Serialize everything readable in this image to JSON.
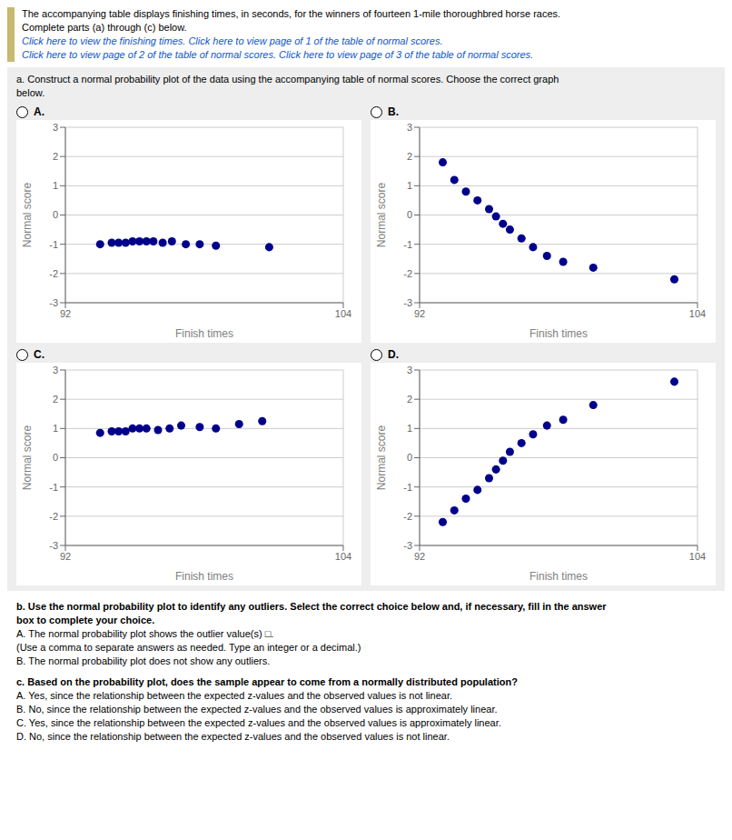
{
  "title": "The accompanying table displays finishing times, in seconds, for the winners of fourteen 1-mile thoroughbred horse races.",
  "subtitle": "Complete parts (a) through (c) below.",
  "annotations": [
    "Click here to view the finishing times. Click here to view page of 1 of the table of normal scores.",
    "Click here to view page of 2 of the table of normal scores. Click here to view page of 3 of the table of normal scores.",
    "a. Construct a normal probability plot of the data using the accompanying table of normal scores. Choose the correct graph",
    "below.",
    "b. Use the normal probability plot to identify any outliers. Select the correct choice below and, if necessary, fill in the answer",
    "box to complete your choice.",
    "A.  The normal probability plot shows the outlier value(s)  □.",
    "(Use a comma to separate answers as needed. Type an integer or a decimal.)",
    "B.  The normal probability plot does not show any outliers.",
    "c. Based on the probability plot, does the sample appear to come from a normally distributed population?",
    "A.  Yes, since the relationship between the expected z-values and the observed values is not linear.",
    "B.  No, since the relationship between the expected z-values and the observed values is approximately linear.",
    "C.  Yes, since the relationship between the expected z-values and the observed values is approximately linear.",
    "D.  No, since the relationship between the expected z-values and the observed values is not linear."
  ],
  "chart_data": [
    {
      "type": "scatter",
      "title": "A.",
      "x": [
        93.5,
        94.0,
        94.3,
        94.6,
        94.9,
        95.2,
        95.5,
        95.8,
        96.2,
        96.6,
        97.2,
        97.8,
        98.5,
        100.8
      ],
      "values": [
        -1.0,
        -0.95,
        -0.95,
        -0.95,
        -0.9,
        -0.9,
        -0.9,
        -0.9,
        -0.95,
        -0.9,
        -1.0,
        -1.0,
        -1.05,
        -1.1
      ],
      "color": "#00008B",
      "xlim": [
        92,
        104
      ],
      "ylim": [
        -3,
        3
      ],
      "xticks": [
        92,
        104
      ],
      "yticks": [
        -3,
        -2,
        -1,
        0,
        1,
        2,
        3
      ],
      "xlabel": "Finish times",
      "ylabel": "Normal score",
      "grid": true
    },
    {
      "type": "scatter",
      "title": "B.",
      "x": [
        93.0,
        93.5,
        94.0,
        94.5,
        95.0,
        95.3,
        95.6,
        95.9,
        96.4,
        96.9,
        97.5,
        98.2,
        99.5,
        103.0
      ],
      "values": [
        1.8,
        1.2,
        0.8,
        0.5,
        0.2,
        -0.05,
        -0.3,
        -0.5,
        -0.8,
        -1.1,
        -1.4,
        -1.6,
        -1.8,
        -2.2
      ],
      "color": "#00008B",
      "xlim": [
        92,
        104
      ],
      "ylim": [
        -3,
        3
      ],
      "xticks": [
        92,
        104
      ],
      "yticks": [
        -3,
        -2,
        -1,
        0,
        1,
        2,
        3
      ],
      "xlabel": "Finish times",
      "ylabel": "Normal score",
      "grid": true
    },
    {
      "type": "scatter",
      "title": "C.",
      "x": [
        93.5,
        94.0,
        94.3,
        94.6,
        94.9,
        95.2,
        95.5,
        96.0,
        96.5,
        97.0,
        97.8,
        98.5,
        99.5,
        100.5
      ],
      "values": [
        0.85,
        0.9,
        0.9,
        0.9,
        1.0,
        1.0,
        1.0,
        0.95,
        1.0,
        1.1,
        1.05,
        1.0,
        1.15,
        1.25
      ],
      "color": "#00008B",
      "xlim": [
        92,
        104
      ],
      "ylim": [
        -3,
        3
      ],
      "xticks": [
        92,
        104
      ],
      "yticks": [
        -3,
        -2,
        -1,
        0,
        1,
        2,
        3
      ],
      "xlabel": "Finish times",
      "ylabel": "Normal score",
      "grid": true
    },
    {
      "type": "scatter",
      "title": "D.",
      "x": [
        93.0,
        93.5,
        94.0,
        94.5,
        95.0,
        95.3,
        95.6,
        95.9,
        96.4,
        96.9,
        97.5,
        98.2,
        99.5,
        103.0
      ],
      "values": [
        -2.2,
        -1.8,
        -1.4,
        -1.1,
        -0.7,
        -0.4,
        -0.1,
        0.2,
        0.5,
        0.8,
        1.1,
        1.3,
        1.8,
        2.6
      ],
      "color": "#00008B",
      "xlim": [
        92,
        104
      ],
      "ylim": [
        -3,
        3
      ],
      "xticks": [
        92,
        104
      ],
      "yticks": [
        -3,
        -2,
        -1,
        0,
        1,
        2,
        3
      ],
      "xlabel": "Finish times",
      "ylabel": "Normal score",
      "grid": true
    }
  ]
}
